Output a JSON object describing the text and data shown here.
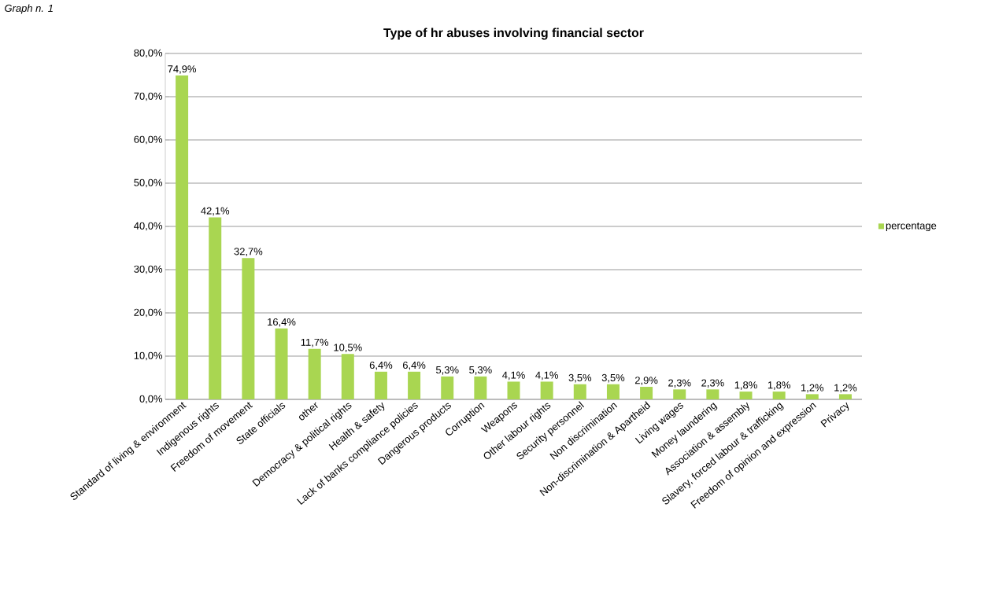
{
  "chart_data": {
    "type": "bar",
    "title": "Type of hr abuses involving financial sector",
    "annotations": [
      "Graph n. 1"
    ],
    "categories": [
      "Standard of living & environment",
      "Indigenous rights",
      "Freedom of movement",
      "State officials",
      "other",
      "Democracy & political rights",
      "Health & safety",
      "Lack of banks compliance policies",
      "Dangerous products",
      "Corruption",
      "Weapons",
      "Other labour rights",
      "Security personnel",
      "Non discrimination",
      "Non-discrimination & Apartheid",
      "Living wages",
      "Money laundering",
      "Association & assembly",
      "Slavery, forced labour & trafficking",
      "Freedom of opinion and expression",
      "Privacy"
    ],
    "series": [
      {
        "name": "percentage",
        "color": "#a9d651",
        "values": [
          74.9,
          42.1,
          32.7,
          16.4,
          11.7,
          10.5,
          6.4,
          6.4,
          5.3,
          5.3,
          4.1,
          4.1,
          3.5,
          3.5,
          2.9,
          2.3,
          2.3,
          1.8,
          1.8,
          1.2,
          1.2
        ],
        "value_labels": [
          "74,9%",
          "42,1%",
          "32,7%",
          "16,4%",
          "11,7%",
          "10,5%",
          "6,4%",
          "6,4%",
          "5,3%",
          "5,3%",
          "4,1%",
          "4,1%",
          "3,5%",
          "3,5%",
          "2,9%",
          "2,3%",
          "2,3%",
          "1,8%",
          "1,8%",
          "1,2%",
          "1,2%"
        ]
      }
    ],
    "ylim": [
      0,
      80
    ],
    "yticks": [
      {
        "value": 0,
        "label": "0,0%"
      },
      {
        "value": 10,
        "label": "10,0%"
      },
      {
        "value": 20,
        "label": "20,0%"
      },
      {
        "value": 30,
        "label": "30,0%"
      },
      {
        "value": 40,
        "label": "40,0%"
      },
      {
        "value": 50,
        "label": "50,0%"
      },
      {
        "value": 60,
        "label": "60,0%"
      },
      {
        "value": 70,
        "label": "70,0%"
      },
      {
        "value": 80,
        "label": "80,0%"
      }
    ],
    "grid": "y",
    "legend": "right"
  }
}
